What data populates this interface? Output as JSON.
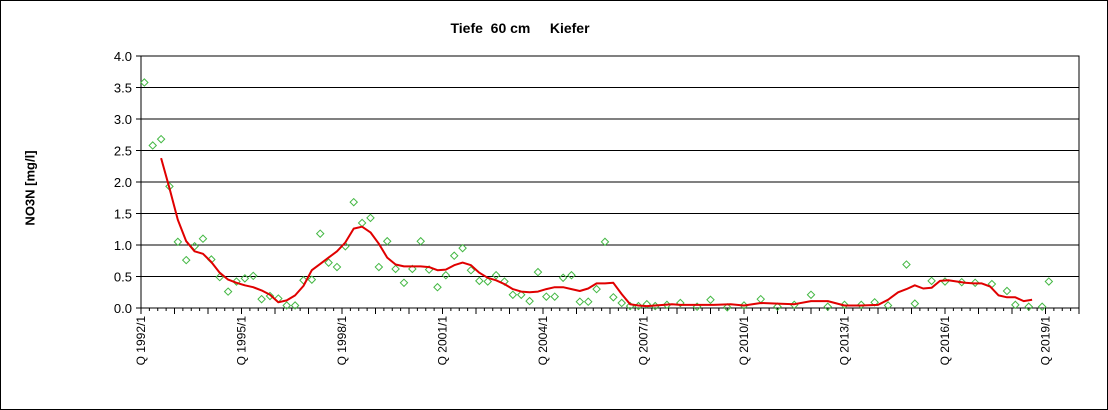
{
  "chart_data": {
    "type": "line",
    "title": "Tiefe  60 cm     Kiefer",
    "ylabel": "NO3N [mg/l]",
    "xlabel": "",
    "ylim": [
      0,
      4.0
    ],
    "yticks": [
      "0.0",
      "0.5",
      "1.0",
      "1.5",
      "2.0",
      "2.5",
      "3.0",
      "3.5",
      "4.0"
    ],
    "xlim": [
      1992.0,
      2020.0
    ],
    "xticks": [
      {
        "label": "Q 1992/1",
        "x": 1992.0
      },
      {
        "label": "Q 1995/1",
        "x": 1995.0
      },
      {
        "label": "Q 1998/1",
        "x": 1998.0
      },
      {
        "label": "Q 2001/1",
        "x": 2001.0
      },
      {
        "label": "Q 2004/1",
        "x": 2004.0
      },
      {
        "label": "Q 2007/1",
        "x": 2007.0
      },
      {
        "label": "Q 2010/1",
        "x": 2010.0
      },
      {
        "label": "Q 2013/1",
        "x": 2013.0
      },
      {
        "label": "Q 2016/1",
        "x": 2016.0
      },
      {
        "label": "Q 2019/1",
        "x": 2019.0
      }
    ],
    "grid": "horizontal",
    "colors": {
      "points": "#44b844",
      "trend": "#e00000"
    },
    "series": [
      {
        "marker": "diamond",
        "points": [
          [
            1992.1,
            3.58
          ],
          [
            1992.35,
            2.58
          ],
          [
            1992.6,
            2.68
          ],
          [
            1992.85,
            1.93
          ],
          [
            1993.1,
            1.05
          ],
          [
            1993.35,
            0.76
          ],
          [
            1993.6,
            0.98
          ],
          [
            1993.85,
            1.1
          ],
          [
            1994.1,
            0.77
          ],
          [
            1994.35,
            0.49
          ],
          [
            1994.6,
            0.26
          ],
          [
            1994.85,
            0.42
          ],
          [
            1995.1,
            0.47
          ],
          [
            1995.35,
            0.51
          ],
          [
            1995.6,
            0.14
          ],
          [
            1995.85,
            0.19
          ],
          [
            1996.1,
            0.15
          ],
          [
            1996.35,
            0.04
          ],
          [
            1996.6,
            0.04
          ],
          [
            1996.85,
            0.44
          ],
          [
            1997.1,
            0.45
          ],
          [
            1997.35,
            1.18
          ],
          [
            1997.6,
            0.72
          ],
          [
            1997.85,
            0.65
          ],
          [
            1998.1,
            0.98
          ],
          [
            1998.35,
            1.68
          ],
          [
            1998.6,
            1.35
          ],
          [
            1998.85,
            1.43
          ],
          [
            1999.1,
            0.65
          ],
          [
            1999.35,
            1.06
          ],
          [
            1999.6,
            0.62
          ],
          [
            1999.85,
            0.4
          ],
          [
            2000.1,
            0.62
          ],
          [
            2000.35,
            1.06
          ],
          [
            2000.6,
            0.61
          ],
          [
            2000.85,
            0.33
          ],
          [
            2001.1,
            0.52
          ],
          [
            2001.35,
            0.83
          ],
          [
            2001.6,
            0.95
          ],
          [
            2001.85,
            0.6
          ],
          [
            2002.1,
            0.43
          ],
          [
            2002.35,
            0.42
          ],
          [
            2002.6,
            0.52
          ],
          [
            2002.85,
            0.42
          ],
          [
            2003.1,
            0.21
          ],
          [
            2003.35,
            0.21
          ],
          [
            2003.6,
            0.11
          ],
          [
            2003.85,
            0.57
          ],
          [
            2004.1,
            0.18
          ],
          [
            2004.35,
            0.18
          ],
          [
            2004.6,
            0.48
          ],
          [
            2004.85,
            0.52
          ],
          [
            2005.1,
            0.1
          ],
          [
            2005.35,
            0.1
          ],
          [
            2005.6,
            0.3
          ],
          [
            2005.85,
            1.05
          ],
          [
            2006.1,
            0.17
          ],
          [
            2006.35,
            0.08
          ],
          [
            2006.6,
            0.03
          ],
          [
            2006.85,
            0.03
          ],
          [
            2007.1,
            0.06
          ],
          [
            2007.35,
            0.03
          ],
          [
            2007.7,
            0.05
          ],
          [
            2008.1,
            0.08
          ],
          [
            2008.6,
            0.02
          ],
          [
            2009.0,
            0.13
          ],
          [
            2009.5,
            0.01
          ],
          [
            2010.0,
            0.04
          ],
          [
            2010.5,
            0.14
          ],
          [
            2011.0,
            0.02
          ],
          [
            2011.5,
            0.05
          ],
          [
            2012.0,
            0.21
          ],
          [
            2012.5,
            0.02
          ],
          [
            2013.0,
            0.05
          ],
          [
            2013.5,
            0.05
          ],
          [
            2013.9,
            0.09
          ],
          [
            2014.3,
            0.04
          ],
          [
            2014.85,
            0.69
          ],
          [
            2015.1,
            0.07
          ],
          [
            2015.6,
            0.43
          ],
          [
            2016.0,
            0.42
          ],
          [
            2016.5,
            0.41
          ],
          [
            2016.9,
            0.4
          ],
          [
            2017.4,
            0.38
          ],
          [
            2017.85,
            0.27
          ],
          [
            2018.1,
            0.05
          ],
          [
            2018.5,
            0.02
          ],
          [
            2018.9,
            0.02
          ],
          [
            2019.1,
            0.42
          ]
        ]
      },
      {
        "marker": "line",
        "points": [
          [
            1992.6,
            2.38
          ],
          [
            1992.85,
            1.9
          ],
          [
            1993.1,
            1.4
          ],
          [
            1993.35,
            1.06
          ],
          [
            1993.6,
            0.9
          ],
          [
            1993.85,
            0.86
          ],
          [
            1994.1,
            0.73
          ],
          [
            1994.35,
            0.56
          ],
          [
            1994.6,
            0.45
          ],
          [
            1994.85,
            0.4
          ],
          [
            1995.1,
            0.36
          ],
          [
            1995.35,
            0.33
          ],
          [
            1995.6,
            0.28
          ],
          [
            1995.85,
            0.21
          ],
          [
            1996.1,
            0.09
          ],
          [
            1996.35,
            0.12
          ],
          [
            1996.6,
            0.2
          ],
          [
            1996.85,
            0.35
          ],
          [
            1997.1,
            0.6
          ],
          [
            1997.35,
            0.7
          ],
          [
            1997.6,
            0.8
          ],
          [
            1997.85,
            0.9
          ],
          [
            1998.1,
            1.04
          ],
          [
            1998.35,
            1.26
          ],
          [
            1998.6,
            1.29
          ],
          [
            1998.85,
            1.2
          ],
          [
            1999.1,
            1.02
          ],
          [
            1999.35,
            0.8
          ],
          [
            1999.6,
            0.69
          ],
          [
            1999.85,
            0.66
          ],
          [
            2000.1,
            0.66
          ],
          [
            2000.35,
            0.66
          ],
          [
            2000.6,
            0.65
          ],
          [
            2000.85,
            0.6
          ],
          [
            2001.1,
            0.61
          ],
          [
            2001.35,
            0.68
          ],
          [
            2001.6,
            0.72
          ],
          [
            2001.85,
            0.68
          ],
          [
            2002.1,
            0.56
          ],
          [
            2002.35,
            0.48
          ],
          [
            2002.6,
            0.44
          ],
          [
            2002.85,
            0.38
          ],
          [
            2003.1,
            0.3
          ],
          [
            2003.35,
            0.26
          ],
          [
            2003.6,
            0.25
          ],
          [
            2003.85,
            0.26
          ],
          [
            2004.1,
            0.3
          ],
          [
            2004.35,
            0.33
          ],
          [
            2004.6,
            0.33
          ],
          [
            2004.85,
            0.3
          ],
          [
            2005.1,
            0.27
          ],
          [
            2005.35,
            0.31
          ],
          [
            2005.6,
            0.39
          ],
          [
            2005.85,
            0.39
          ],
          [
            2006.1,
            0.4
          ],
          [
            2006.35,
            0.22
          ],
          [
            2006.6,
            0.06
          ],
          [
            2006.85,
            0.04
          ],
          [
            2007.1,
            0.03
          ],
          [
            2007.35,
            0.04
          ],
          [
            2007.6,
            0.05
          ],
          [
            2007.85,
            0.06
          ],
          [
            2008.1,
            0.05
          ],
          [
            2008.6,
            0.05
          ],
          [
            2009.1,
            0.05
          ],
          [
            2009.6,
            0.06
          ],
          [
            2010.0,
            0.04
          ],
          [
            2010.5,
            0.08
          ],
          [
            2011.0,
            0.07
          ],
          [
            2011.5,
            0.06
          ],
          [
            2012.0,
            0.11
          ],
          [
            2012.5,
            0.11
          ],
          [
            2013.0,
            0.04
          ],
          [
            2013.5,
            0.04
          ],
          [
            2014.0,
            0.05
          ],
          [
            2014.3,
            0.13
          ],
          [
            2014.6,
            0.25
          ],
          [
            2014.85,
            0.3
          ],
          [
            2015.1,
            0.36
          ],
          [
            2015.35,
            0.31
          ],
          [
            2015.6,
            0.32
          ],
          [
            2015.85,
            0.43
          ],
          [
            2016.1,
            0.44
          ],
          [
            2016.35,
            0.42
          ],
          [
            2016.6,
            0.4
          ],
          [
            2016.85,
            0.39
          ],
          [
            2017.1,
            0.39
          ],
          [
            2017.35,
            0.34
          ],
          [
            2017.6,
            0.2
          ],
          [
            2017.85,
            0.17
          ],
          [
            2018.1,
            0.17
          ],
          [
            2018.35,
            0.11
          ],
          [
            2018.6,
            0.13
          ]
        ]
      }
    ]
  }
}
